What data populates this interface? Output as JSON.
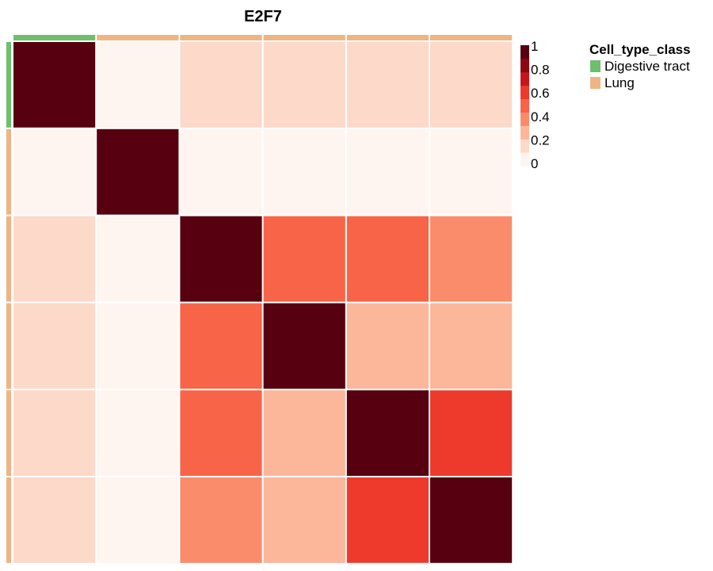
{
  "chart_data": {
    "type": "heatmap",
    "title": "E2F7",
    "rows": 6,
    "cols": 6,
    "values": [
      [
        1.0,
        0.05,
        0.18,
        0.18,
        0.18,
        0.18
      ],
      [
        0.05,
        1.0,
        0.05,
        0.05,
        0.05,
        0.05
      ],
      [
        0.18,
        0.05,
        1.0,
        0.5,
        0.5,
        0.4
      ],
      [
        0.18,
        0.05,
        0.5,
        1.0,
        0.28,
        0.28
      ],
      [
        0.18,
        0.05,
        0.5,
        0.28,
        1.0,
        0.6
      ],
      [
        0.18,
        0.05,
        0.4,
        0.28,
        0.6,
        1.0
      ]
    ],
    "annotation": {
      "title": "Cell_type_class",
      "classes": [
        {
          "label": "Digestive tract",
          "color": "#6dbf6d"
        },
        {
          "label": "Lung",
          "color": "#f0b482"
        }
      ],
      "assignments": [
        0,
        1,
        1,
        1,
        1,
        1
      ]
    },
    "colorbar": {
      "ticks": [
        "1",
        "0.8",
        "0.6",
        "0.4",
        "0.2",
        "0"
      ],
      "range": [
        0,
        1
      ],
      "colors": [
        "#fff5f0",
        "#fdd9c9",
        "#fcb69a",
        "#fb8c6b",
        "#f76448",
        "#ee3a2c",
        "#c5161c",
        "#8b0812",
        "#560010"
      ]
    }
  }
}
